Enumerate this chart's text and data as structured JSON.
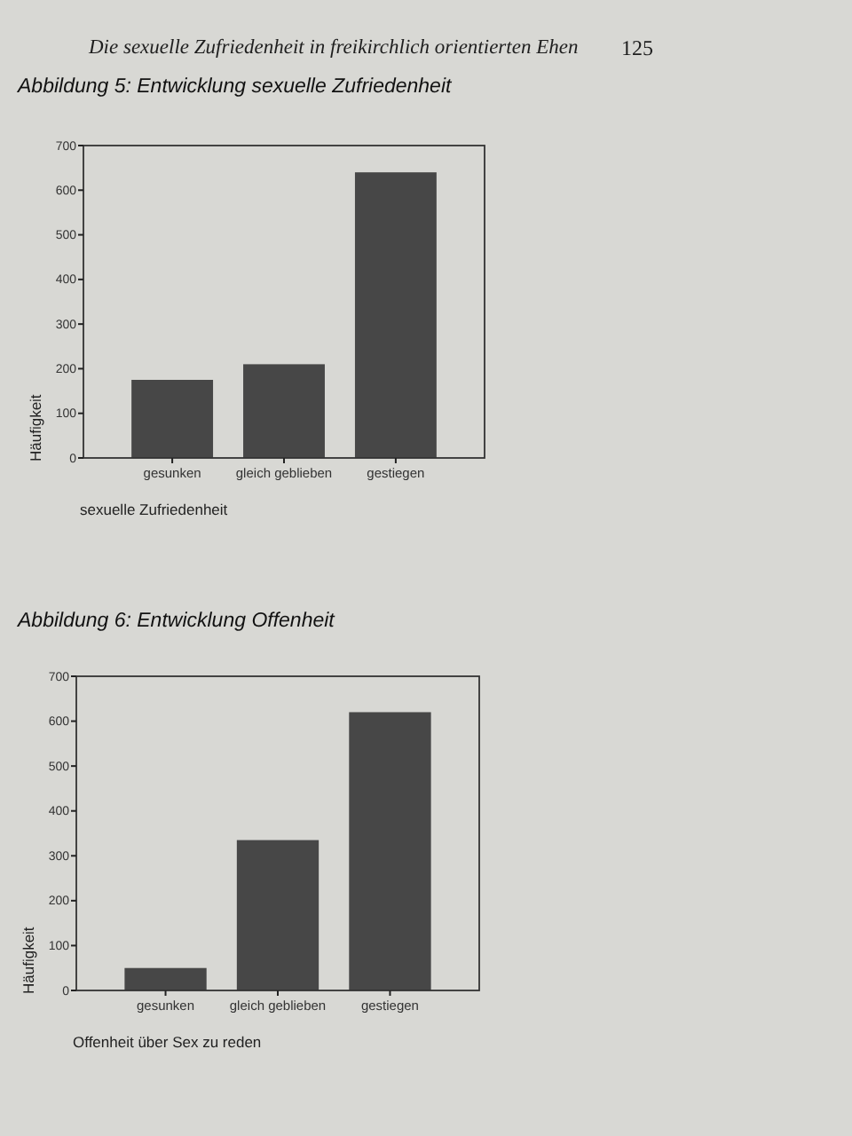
{
  "chart_data": [
    {
      "type": "bar",
      "title": "Abbildung 5: Entwicklung sexuelle Zufriedenheit",
      "annotations": [
        "Die sexuelle Zufriedenheit in freikirchlich orientierten Ehen",
        "125"
      ],
      "categories": [
        "gesunken",
        "gleich geblieben",
        "gestiegen"
      ],
      "values": [
        175,
        210,
        640
      ],
      "color": "#474747",
      "xlabel": "sexuelle Zufriedenheit",
      "ylabel": "Häufigkeit",
      "ylim": [
        0,
        700
      ],
      "yticks": [
        0,
        100,
        200,
        300,
        400,
        500,
        600,
        700
      ],
      "grid": false
    },
    {
      "type": "bar",
      "title": "Abbildung 6: Entwicklung Offenheit",
      "categories": [
        "gesunken",
        "gleich geblieben",
        "gestiegen"
      ],
      "values": [
        50,
        335,
        620
      ],
      "color": "#474747",
      "xlabel": "Offenheit über Sex zu reden",
      "ylabel": "Häufigkeit",
      "ylim": [
        0,
        700
      ],
      "yticks": [
        0,
        100,
        200,
        300,
        400,
        500,
        600,
        700
      ],
      "grid": false
    }
  ]
}
